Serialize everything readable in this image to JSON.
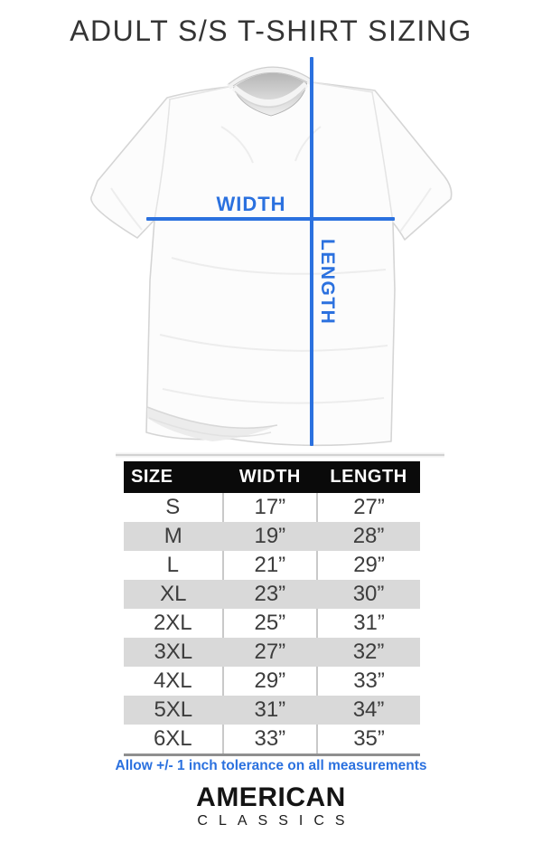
{
  "title": "ADULT S/S T-SHIRT SIZING",
  "diagram": {
    "width_label": "WIDTH",
    "length_label": "LENGTH"
  },
  "size_chart": {
    "columns": [
      "SIZE",
      "WIDTH",
      "LENGTH"
    ],
    "rows": [
      [
        "S",
        "17”",
        "27”"
      ],
      [
        "M",
        "19”",
        "28”"
      ],
      [
        "L",
        "21”",
        "29”"
      ],
      [
        "XL",
        "23”",
        "30”"
      ],
      [
        "2XL",
        "25”",
        "31”"
      ],
      [
        "3XL",
        "27”",
        "32”"
      ],
      [
        "4XL",
        "29”",
        "33”"
      ],
      [
        "5XL",
        "31”",
        "34”"
      ],
      [
        "6XL",
        "33”",
        "35”"
      ]
    ]
  },
  "footer": {
    "tolerance_note": "Allow +/- 1 inch tolerance on all measurements",
    "brand_line1": "AMERICAN",
    "brand_line2": "CLASSICS"
  },
  "colors": {
    "accent_blue": "#2b71df",
    "header_bg": "#0a0a0a",
    "row_alt_gray": "#d9d9d9"
  }
}
